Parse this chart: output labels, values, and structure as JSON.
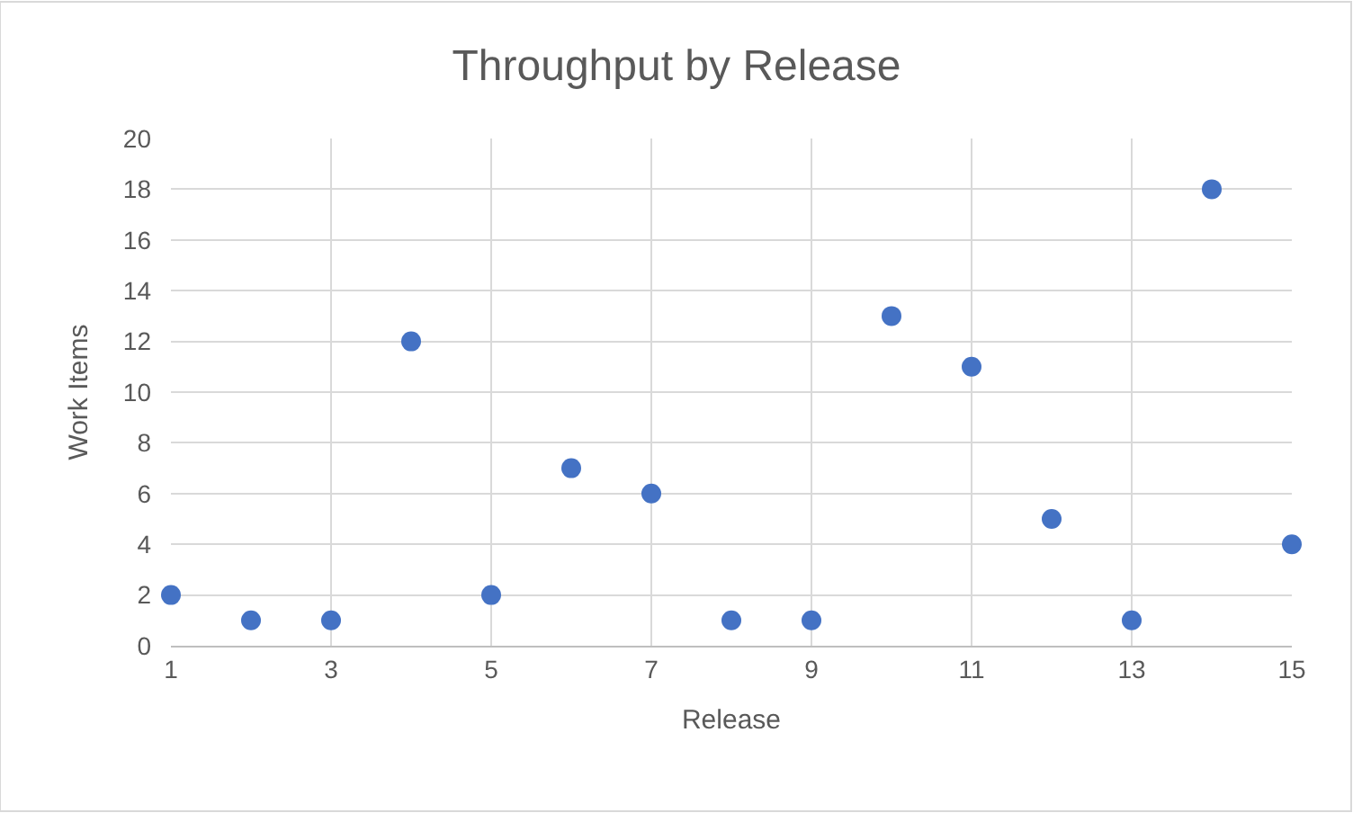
{
  "chart_data": {
    "type": "scatter",
    "title": "Throughput by Release",
    "xlabel": "Release",
    "ylabel": "Work Items",
    "x": [
      1,
      2,
      3,
      4,
      5,
      6,
      7,
      8,
      9,
      10,
      11,
      12,
      13,
      14,
      15
    ],
    "values": [
      2,
      1,
      1,
      12,
      2,
      7,
      6,
      1,
      1,
      13,
      11,
      5,
      1,
      18,
      4
    ],
    "color": "#4472c4",
    "marker": "circle",
    "xlim": [
      1,
      15
    ],
    "xticks": [
      1,
      3,
      5,
      7,
      9,
      11,
      13,
      15
    ],
    "ylim": [
      0,
      20
    ],
    "yticks": [
      0,
      2,
      4,
      6,
      8,
      10,
      12,
      14,
      16,
      18,
      20
    ],
    "grid": true
  }
}
